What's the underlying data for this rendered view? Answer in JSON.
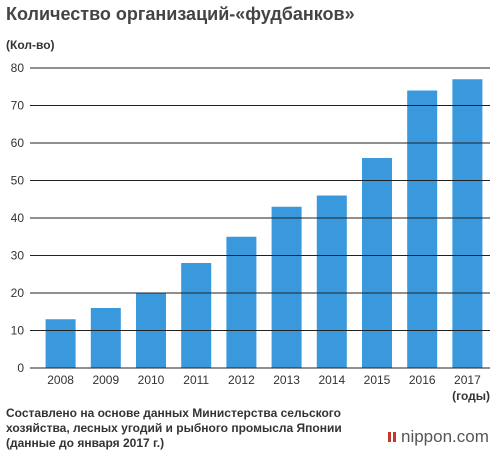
{
  "chart_data": {
    "type": "bar",
    "title": "Количество организаций-«фудбанков»",
    "ylabel": "(Кол-во)",
    "xlabel": "(годы)",
    "categories": [
      "2008",
      "2009",
      "2010",
      "2011",
      "2012",
      "2013",
      "2014",
      "2015",
      "2016",
      "2017"
    ],
    "values": [
      13,
      16,
      20,
      28,
      35,
      43,
      46,
      56,
      74,
      77
    ],
    "ylim": [
      0,
      80
    ],
    "yticks": [
      0,
      10,
      20,
      30,
      40,
      50,
      60,
      70,
      80
    ],
    "grid": false,
    "bar_color": "#3a98dc"
  },
  "source_note": "Составлено на основе данных Министерства сельского хозяйства, лесных угодий и рыбного промысла Японии (данные до января 2017 г.)",
  "brand": "nippon.com"
}
